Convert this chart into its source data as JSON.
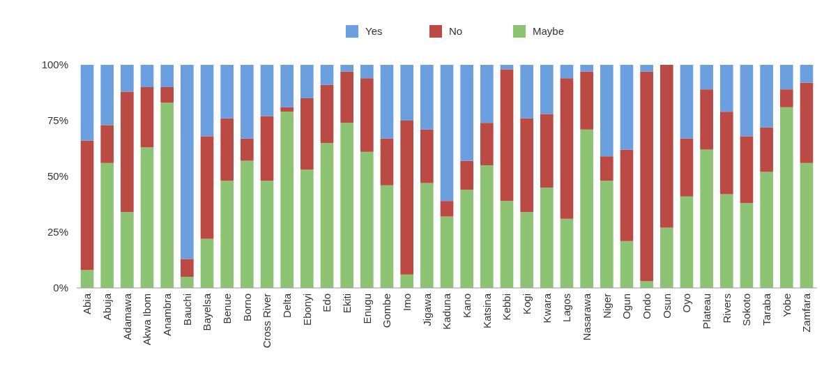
{
  "chart_data": {
    "type": "bar",
    "stacked": true,
    "legend": "top",
    "categories": [
      "Abia",
      "Abuja",
      "Adamawa",
      "Akwa Ibom",
      "Anambra",
      "Bauchi",
      "Bayelsa",
      "Benue",
      "Borno",
      "Cross River",
      "Delta",
      "Ebonyi",
      "Edo",
      "Ekiti",
      "Enugu",
      "Gombe",
      "Imo",
      "Jigawa",
      "Kaduna",
      "Kano",
      "Katsina",
      "Kebbi",
      "Kogi",
      "Kwara",
      "Lagos",
      "Nasarawa",
      "Niger",
      "Ogun",
      "Ondo",
      "Osun",
      "Oyo",
      "Plateau",
      "Rivers",
      "Sokoto",
      "Taraba",
      "Yobe",
      "Zamfara"
    ],
    "series": [
      {
        "name": "Maybe",
        "color": "#8cc474",
        "values": [
          8,
          56,
          34,
          63,
          83,
          5,
          22,
          48,
          57,
          48,
          79,
          53,
          65,
          74,
          61,
          46,
          6,
          47,
          32,
          44,
          55,
          39,
          34,
          45,
          31,
          71,
          48,
          21,
          3,
          27,
          41,
          62,
          42,
          38,
          52,
          81,
          56
        ]
      },
      {
        "name": "No",
        "color": "#bb4a44",
        "values": [
          58,
          17,
          54,
          27,
          7,
          8,
          46,
          28,
          10,
          29,
          2,
          32,
          26,
          23,
          33,
          21,
          69,
          24,
          7,
          13,
          19,
          59,
          42,
          33,
          63,
          26,
          11,
          41,
          94,
          73,
          26,
          27,
          37,
          30,
          20,
          8,
          36
        ]
      },
      {
        "name": "Yes",
        "color": "#6b9fe0",
        "values": [
          34,
          27,
          12,
          10,
          10,
          87,
          32,
          24,
          33,
          23,
          19,
          15,
          9,
          3,
          6,
          33,
          25,
          29,
          61,
          43,
          26,
          2,
          24,
          22,
          6,
          3,
          41,
          38,
          3,
          0,
          33,
          11,
          21,
          32,
          28,
          11,
          8
        ]
      }
    ],
    "ylim": [
      0,
      100
    ],
    "yticks": [
      {
        "value": 0,
        "label": "0%"
      },
      {
        "value": 25,
        "label": "25%"
      },
      {
        "value": 50,
        "label": "50%"
      },
      {
        "value": 75,
        "label": "75%"
      },
      {
        "value": 100,
        "label": "100%"
      }
    ]
  }
}
